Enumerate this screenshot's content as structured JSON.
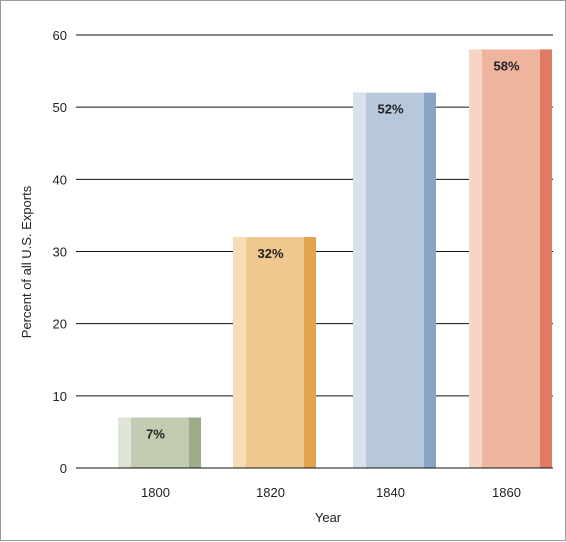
{
  "chart_data": {
    "type": "bar",
    "categories": [
      "1800",
      "1820",
      "1840",
      "1860"
    ],
    "values": [
      7,
      32,
      52,
      58
    ],
    "data_labels": [
      "7%",
      "32%",
      "52%",
      "58%"
    ],
    "xlabel": "Year",
    "ylabel": "Percent of all U.S. Exports",
    "ylim": [
      0,
      60
    ],
    "yticks": [
      "0",
      "10",
      "20",
      "30",
      "40",
      "50",
      "60"
    ],
    "grid": true,
    "bar_colors": [
      {
        "light": "#dfe5d6",
        "mid": "#c2ccb2",
        "dark": "#9ead89"
      },
      {
        "light": "#f7dcb8",
        "mid": "#efc88f",
        "dark": "#e3a450"
      },
      {
        "light": "#d9e1ec",
        "mid": "#b7c8da",
        "dark": "#88a6c4"
      },
      {
        "light": "#f6d4c6",
        "mid": "#eeb49d",
        "dark": "#e07a60"
      }
    ]
  }
}
